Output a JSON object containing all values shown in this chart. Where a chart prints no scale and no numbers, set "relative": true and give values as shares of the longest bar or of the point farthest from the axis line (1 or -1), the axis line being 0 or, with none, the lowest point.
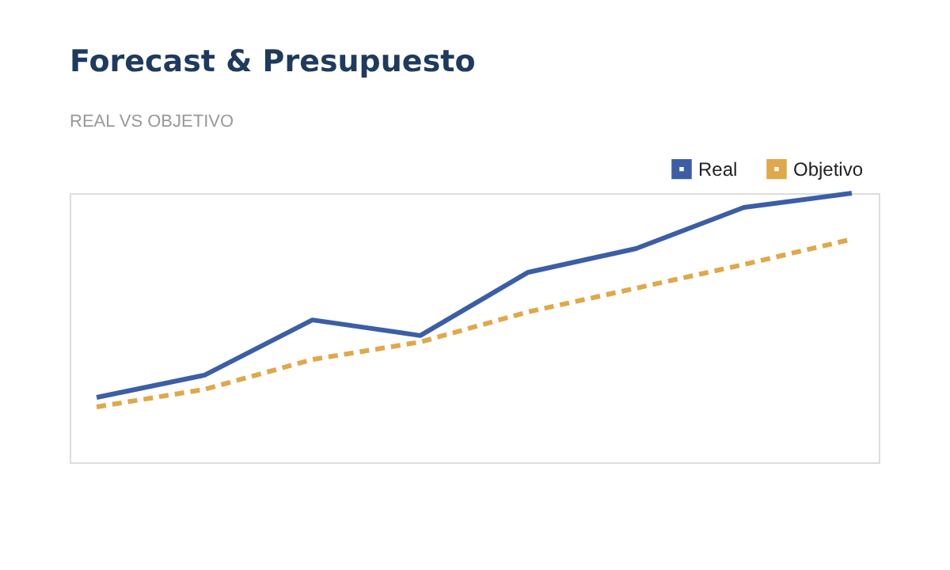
{
  "chart_data": {
    "type": "line",
    "title": "Forecast & Presupuesto",
    "subtitle": "REAL VS OBJETIVO",
    "relative": true,
    "categories": [
      null,
      null,
      null,
      null,
      null,
      null,
      null,
      null
    ],
    "series": [
      {
        "name": "Real",
        "color": "#3b5ea6",
        "line_style": "solid",
        "values": [
          0.241,
          0.324,
          0.529,
          0.471,
          0.706,
          0.794,
          0.947,
          1.0
        ]
      },
      {
        "name": "Objetivo",
        "color": "#e0a84a",
        "line_style": "dashed",
        "values": [
          0.206,
          0.271,
          0.382,
          0.447,
          0.559,
          0.647,
          0.735,
          0.829
        ]
      }
    ],
    "legend": "top right",
    "grid": false,
    "tick_labels": false,
    "marker": "none"
  }
}
